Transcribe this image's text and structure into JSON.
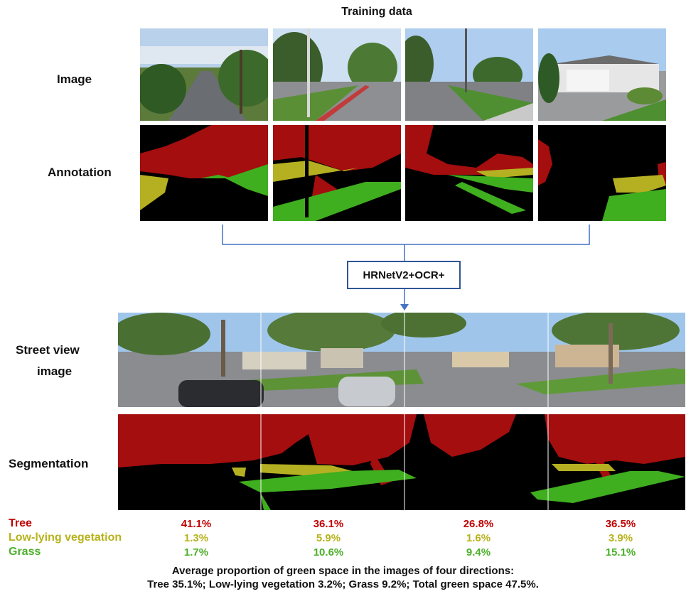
{
  "training": {
    "title": "Training data",
    "image_label": "Image",
    "annotation_label": "Annotation"
  },
  "model": {
    "name": "HRNetV2+OCR+"
  },
  "street": {
    "image_label_line1": "Street view",
    "image_label_line2": "image",
    "segmentation_label": "Segmentation"
  },
  "stats": {
    "tree_label": "Tree",
    "low_label": "Low-lying vegetation",
    "grass_label": "Grass",
    "directions": [
      {
        "tree": "41.1%",
        "low": "1.3%",
        "grass": "1.7%"
      },
      {
        "tree": "36.1%",
        "low": "5.9%",
        "grass": "10.6%"
      },
      {
        "tree": "26.8%",
        "low": "1.6%",
        "grass": "9.4%"
      },
      {
        "tree": "36.5%",
        "low": "3.9%",
        "grass": "15.1%"
      }
    ]
  },
  "summary": {
    "line1": "Average proportion of green space in the images of four directions:",
    "line2": "Tree 35.1%; Low-lying vegetation 3.2%; Grass 9.2%; Total green space 47.5%."
  },
  "colors": {
    "tree": "#a40e0e",
    "low": "#b5b021",
    "grass": "#3fae1f",
    "background": "#000000",
    "arrow": "#4472c4",
    "tree_text": "#c00000",
    "low_text": "#b7b21c",
    "grass_text": "#4caf2a"
  }
}
